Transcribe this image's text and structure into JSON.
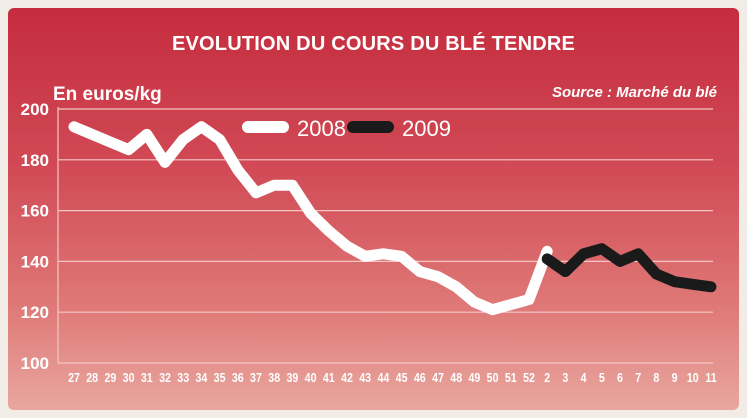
{
  "header": {
    "title": "EVOLUTION DU COURS DU BLÉ TENDRE",
    "units": "En euros/kg",
    "source": "Source : Marché du blé"
  },
  "colors": {
    "grid": "#f4c6c6",
    "series_2008": "#ffffff",
    "series_2009": "#1a1a1a",
    "text": "#ffffff"
  },
  "chart_data": {
    "type": "line",
    "title": "EVOLUTION DU COURS DU BLÉ TENDRE",
    "ylabel": "En euros/kg",
    "xlabel": "",
    "ylim": [
      100,
      200
    ],
    "yticks": [
      100,
      120,
      140,
      160,
      180,
      200
    ],
    "grid": true,
    "legend": "top-center",
    "categories": [
      "27",
      "28",
      "29",
      "30",
      "31",
      "32",
      "33",
      "34",
      "35",
      "36",
      "37",
      "38",
      "39",
      "40",
      "41",
      "42",
      "43",
      "44",
      "45",
      "46",
      "47",
      "48",
      "49",
      "50",
      "51",
      "52",
      "2",
      "3",
      "4",
      "5",
      "6",
      "7",
      "8",
      "9",
      "10",
      "11"
    ],
    "series": [
      {
        "name": "2008",
        "x": [
          "27",
          "28",
          "29",
          "30",
          "31",
          "32",
          "33",
          "34",
          "35",
          "36",
          "37",
          "38",
          "39",
          "40",
          "41",
          "42",
          "43",
          "44",
          "45",
          "46",
          "47",
          "48",
          "49",
          "50",
          "51",
          "52",
          "2"
        ],
        "values": [
          193,
          190,
          187,
          184,
          190,
          179,
          188,
          193,
          188,
          176,
          167,
          170,
          170,
          159,
          152,
          146,
          142,
          143,
          142,
          136,
          134,
          130,
          124,
          121,
          123,
          125,
          144
        ]
      },
      {
        "name": "2009",
        "x": [
          "2",
          "3",
          "4",
          "5",
          "6",
          "7",
          "8",
          "9",
          "10",
          "11"
        ],
        "values": [
          141,
          136,
          143,
          145,
          140,
          143,
          135,
          132,
          131,
          130
        ]
      }
    ]
  }
}
